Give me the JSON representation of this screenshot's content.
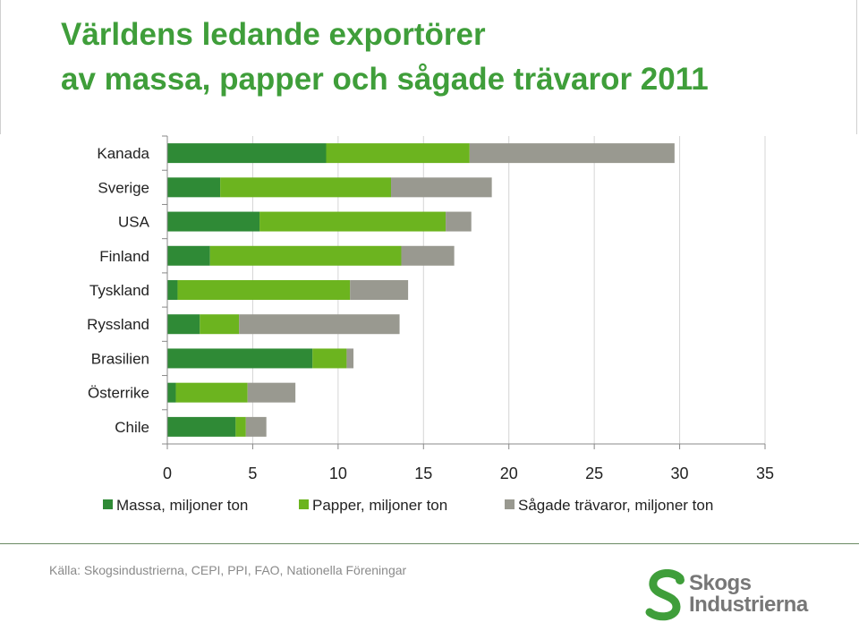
{
  "title": {
    "line1": "Världens ledande exportörer",
    "line2": "av massa, papper och sågade trävaror 2011"
  },
  "source": "Källa: Skogsindustrierna, CEPI, PPI, FAO, Nationella Föreningar",
  "logo": {
    "line1": "Skogs",
    "line2": "Industrierna"
  },
  "colors": {
    "title": "#3f9e3a",
    "massa": "#2f8a36",
    "papper": "#6cb41f",
    "sagade": "#999990"
  },
  "chart_data": {
    "type": "bar",
    "orientation": "horizontal",
    "stacked": true,
    "title": "",
    "categories": [
      "Kanada",
      "Sverige",
      "USA",
      "Finland",
      "Tyskland",
      "Ryssland",
      "Brasilien",
      "Österrike",
      "Chile"
    ],
    "series": [
      {
        "name": "Massa, miljoner ton",
        "color": "#2f8a36",
        "values": [
          9.3,
          3.1,
          5.4,
          2.5,
          0.6,
          1.9,
          8.5,
          0.5,
          4.0
        ]
      },
      {
        "name": "Papper, miljoner ton",
        "color": "#6cb41f",
        "values": [
          8.4,
          10.0,
          10.9,
          11.2,
          10.1,
          2.3,
          2.0,
          4.2,
          0.6
        ]
      },
      {
        "name": "Sågade trävaror, miljoner ton",
        "color": "#999990",
        "values": [
          12.0,
          5.9,
          1.5,
          3.1,
          3.4,
          9.4,
          0.4,
          2.8,
          1.2
        ]
      }
    ],
    "xlim": [
      0,
      35
    ],
    "xticks": [
      0,
      5,
      10,
      15,
      20,
      25,
      30,
      35
    ],
    "grid": true,
    "legend": "bottom"
  }
}
